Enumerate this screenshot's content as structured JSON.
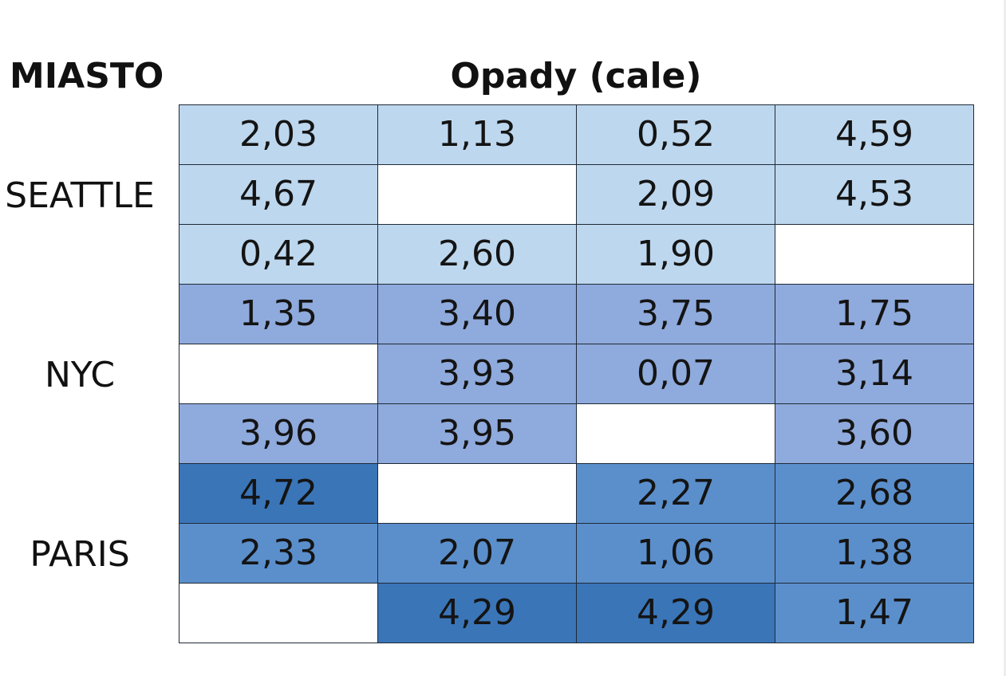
{
  "headers": {
    "city": "MIASTO",
    "value": "Opady (cale)"
  },
  "colors": {
    "SEATTLE": "#bdd7ee",
    "NYC": "#8faadc",
    "PARIS_light": "#5b8fcc",
    "PARIS_dark": "#3a75b8",
    "empty": "#ffffff"
  },
  "chart_data": {
    "type": "table",
    "columns": 4,
    "groups": [
      {
        "city": "SEATTLE",
        "rows": [
          [
            "2,03",
            "1,13",
            "0,52",
            "4,59"
          ],
          [
            "4,67",
            "",
            "2,09",
            "4,53"
          ],
          [
            "0,42",
            "2,60",
            "1,90",
            ""
          ]
        ]
      },
      {
        "city": "NYC",
        "rows": [
          [
            "1,35",
            "3,40",
            "3,75",
            "1,75"
          ],
          [
            "",
            "3,93",
            "0,07",
            "3,14"
          ],
          [
            "3,96",
            "3,95",
            "",
            "3,60"
          ]
        ]
      },
      {
        "city": "PARIS",
        "rows": [
          [
            "4,72",
            "",
            "2,27",
            "2,68"
          ],
          [
            "2,33",
            "2,07",
            "1,06",
            "1,38"
          ],
          [
            "",
            "4,29",
            "4,29",
            "1,47"
          ]
        ]
      }
    ]
  }
}
